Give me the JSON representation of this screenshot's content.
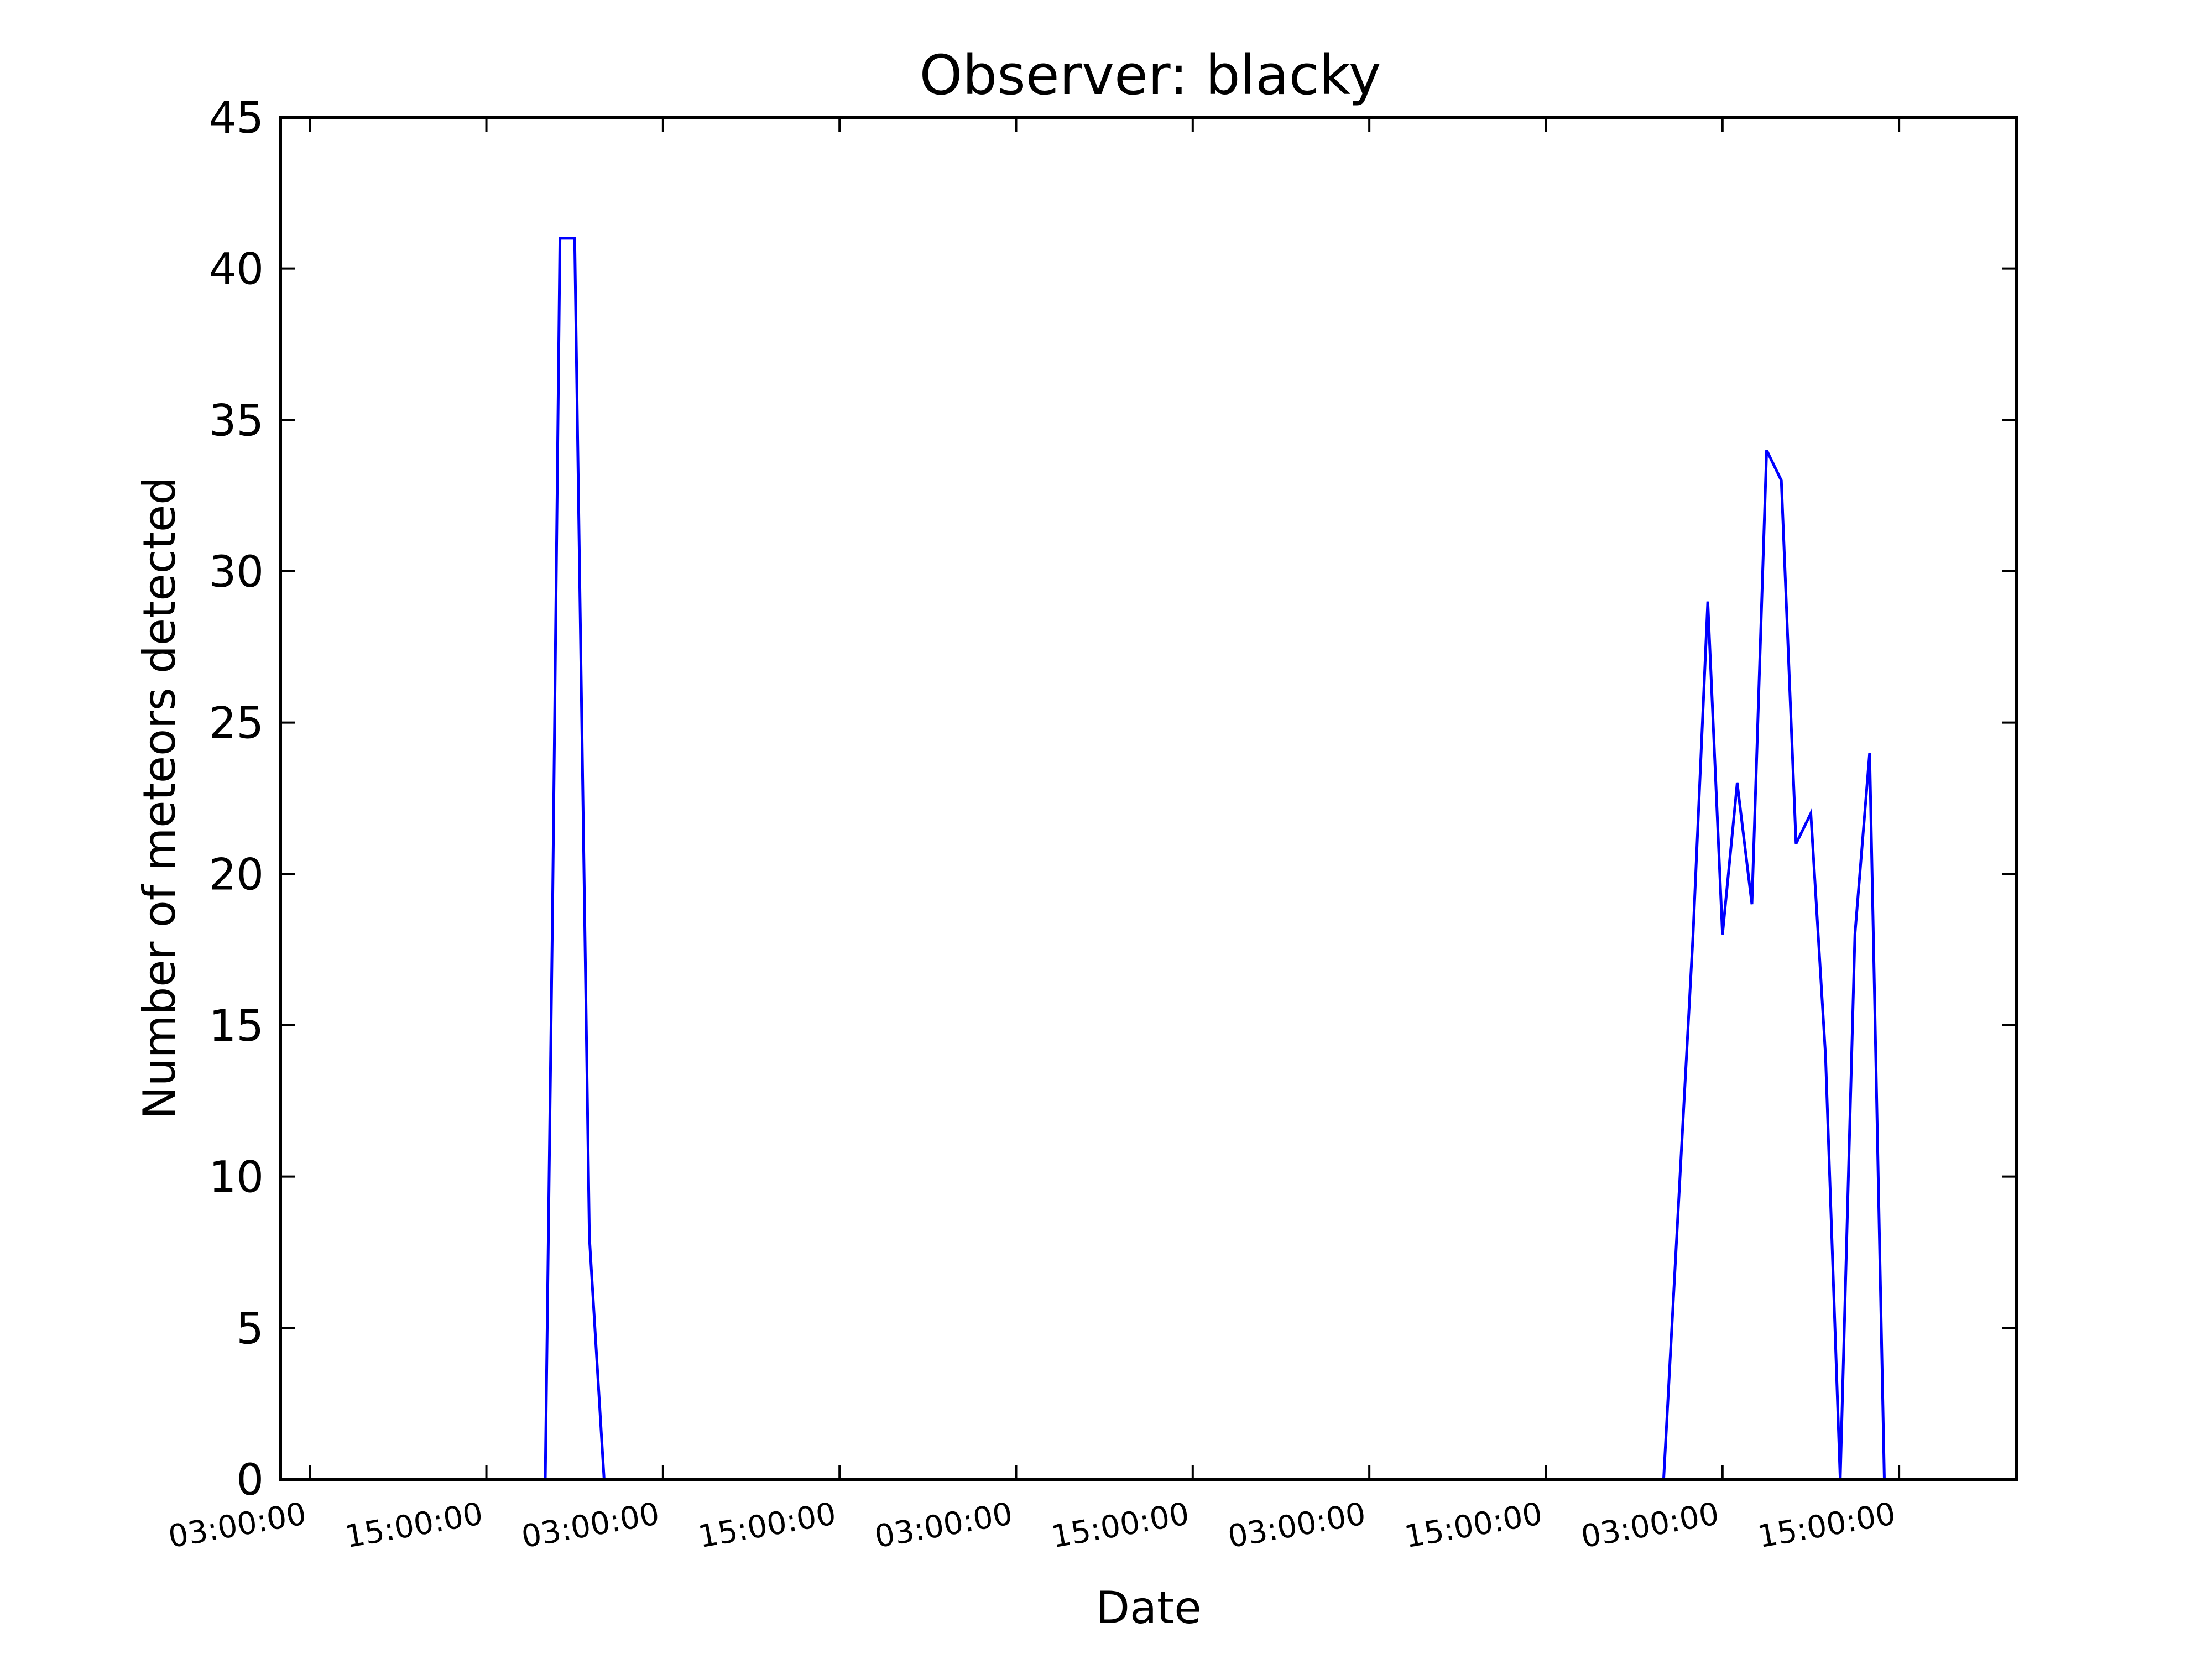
{
  "chart_data": {
    "type": "line",
    "title": "Observer: blacky",
    "xlabel": "Date",
    "ylabel": "Number of meteors detected",
    "ylim": [
      0,
      45
    ],
    "yticks": [
      0,
      5,
      10,
      15,
      20,
      25,
      30,
      35,
      40,
      45
    ],
    "x_unit": "hours from first tick",
    "xlim": [
      -2,
      116
    ],
    "xticks": [
      0,
      12,
      24,
      36,
      48,
      60,
      72,
      84,
      96,
      108
    ],
    "xtick_labels": [
      "03:00:00",
      "15:00:00",
      "03:00:00",
      "15:00:00",
      "03:00:00",
      "15:00:00",
      "03:00:00",
      "15:00:00",
      "03:00:00",
      "15:00:00"
    ],
    "grid": false,
    "legend": false,
    "colors": {
      "line": "#0000ff",
      "axes": "#000000",
      "background": "#ffffff"
    },
    "series": [
      {
        "x": [
          0,
          16,
          16.5,
          17,
          18,
          19,
          20,
          80,
          92,
          94,
          95,
          96,
          97,
          98,
          99,
          100,
          101,
          102,
          103,
          104,
          105,
          106,
          107,
          108
        ],
        "y": [
          0,
          0,
          19,
          41,
          41,
          8,
          0,
          0,
          0,
          18,
          29,
          18,
          23,
          19,
          34,
          33,
          21,
          22,
          14,
          0,
          18,
          24,
          0,
          0
        ]
      }
    ]
  }
}
